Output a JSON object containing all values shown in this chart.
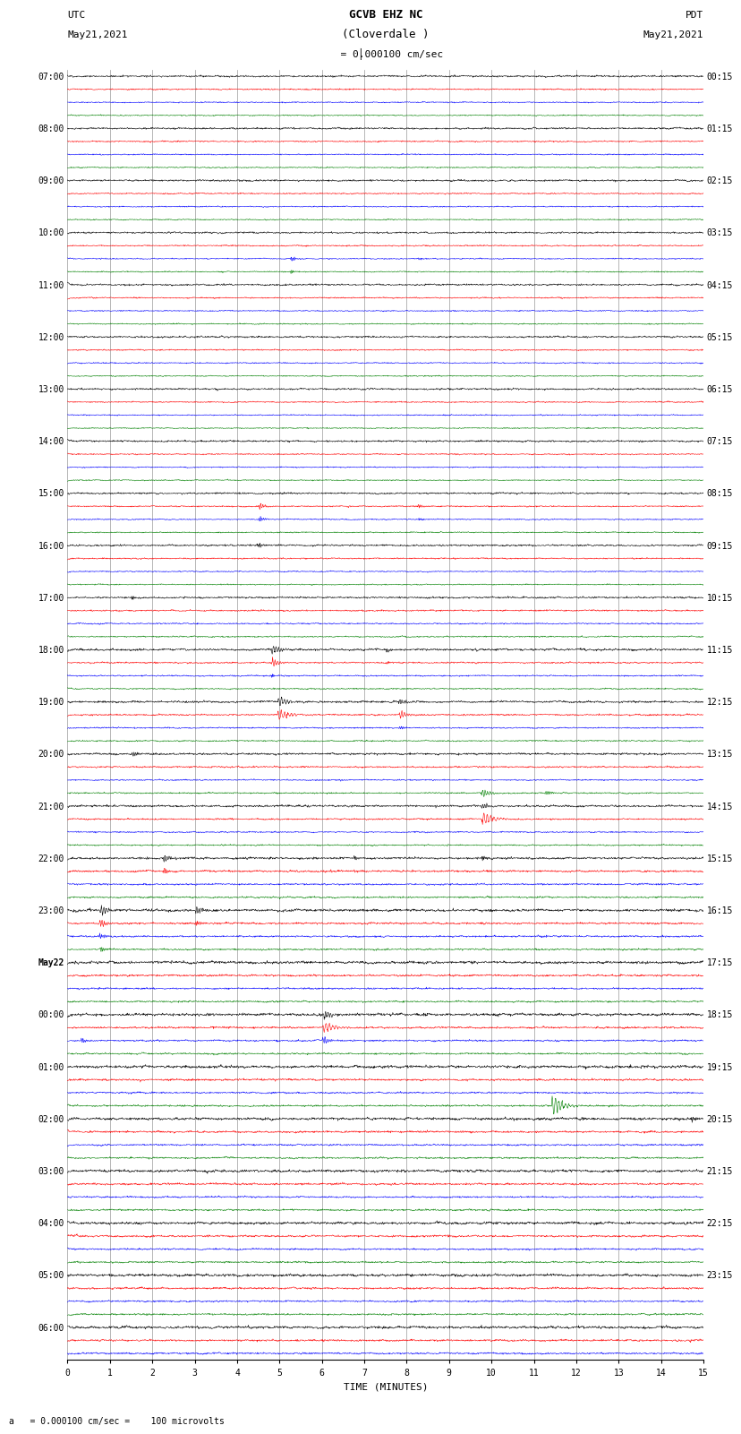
{
  "title_line1": "GCVB EHZ NC",
  "title_line2": "(Cloverdale )",
  "scale_label": "  = 0.000100 cm/sec",
  "left_label_top": "UTC",
  "left_label_date": "May21,2021",
  "right_label_top": "PDT",
  "right_label_date": "May21,2021",
  "bottom_label": "a   = 0.000100 cm/sec =    100 microvolts",
  "xlabel": "TIME (MINUTES)",
  "utc_times_labeled": [
    "07:00",
    "08:00",
    "09:00",
    "10:00",
    "11:00",
    "12:00",
    "13:00",
    "14:00",
    "15:00",
    "16:00",
    "17:00",
    "18:00",
    "19:00",
    "20:00",
    "21:00",
    "22:00",
    "23:00",
    "May22",
    "00:00",
    "01:00",
    "02:00",
    "03:00",
    "04:00",
    "05:00",
    "06:00"
  ],
  "pdt_times_labeled": [
    "00:15",
    "01:15",
    "02:15",
    "03:15",
    "04:15",
    "05:15",
    "06:15",
    "07:15",
    "08:15",
    "09:15",
    "10:15",
    "11:15",
    "12:15",
    "13:15",
    "14:15",
    "15:15",
    "16:15",
    "17:15",
    "18:15",
    "19:15",
    "20:15",
    "21:15",
    "22:15",
    "23:15"
  ],
  "trace_colors": [
    "black",
    "red",
    "blue",
    "green"
  ],
  "n_traces": 99,
  "traces_per_hour": 4,
  "x_min": 0,
  "x_max": 15,
  "x_ticks": [
    0,
    1,
    2,
    3,
    4,
    5,
    6,
    7,
    8,
    9,
    10,
    11,
    12,
    13,
    14,
    15
  ],
  "grid_color": "#808080",
  "background_color": "white",
  "noise_scale_base": 0.06,
  "font_size_title": 9,
  "font_size_axis": 8,
  "font_size_tick": 7,
  "font_size_label": 7
}
